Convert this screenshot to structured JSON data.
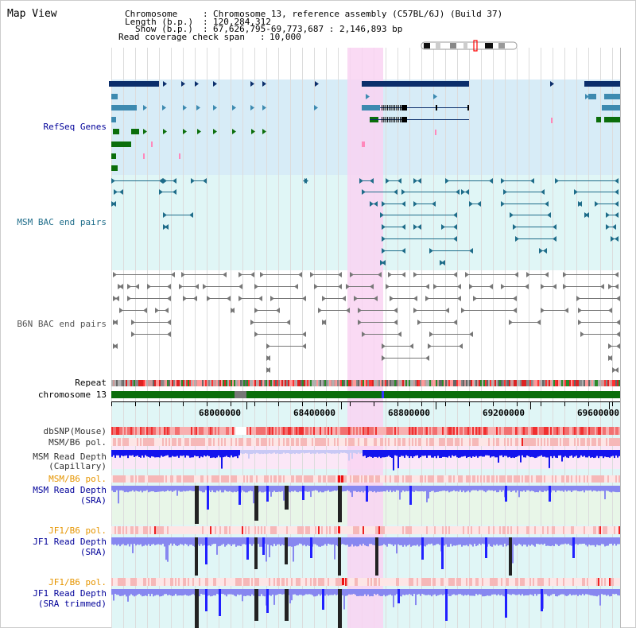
{
  "title": "Map View",
  "info": {
    "chromosome_label": "Chromosome",
    "chromosome_value": "Chromosome 13, reference assembly (C57BL/6J) (Build 37)",
    "length_label": "Length (b.p.)",
    "length_value": "120,284,312",
    "show_label": "Show (b.p.)",
    "show_value": "67,626,795-69,773,687 : 2,146,893 bp",
    "span_label": "Read coverage check span",
    "span_value": "10,000"
  },
  "tracks": {
    "refseq": "RefSeq Genes",
    "msm_bac": "MSM BAC end pairs",
    "b6n_bac": "B6N BAC end pairs",
    "repeat": "Repeat",
    "chromosome": "chromosome 13",
    "dbsnp": "dbSNP(Mouse)",
    "msm_b6_pol_1": "MSM/B6 pol.",
    "msm_read_depth_cap_1": "MSM Read Depth",
    "msm_read_depth_cap_2": "(Capillary)",
    "msm_b6_pol_2": "MSM/B6 pol.",
    "msm_read_depth_sra_1": "MSM Read Depth",
    "msm_read_depth_sra_2": "(SRA)",
    "jf1_b6_pol_1": "JF1/B6 pol.",
    "jf1_read_depth_sra_1": "JF1 Read Depth",
    "jf1_read_depth_sra_2": "(SRA)",
    "jf1_b6_pol_2": "JF1/B6 pol.",
    "jf1_read_depth_trim_1": "JF1 Read Depth",
    "jf1_read_depth_trim_2": "(SRA trimmed)"
  },
  "ruler": {
    "ticks": [
      "68000000",
      "68400000",
      "68800000",
      "69200000",
      "69600000"
    ]
  },
  "colors": {
    "label_blue": "#000099",
    "label_orange": "#e69500",
    "highlight": "#f9d4f2",
    "refseq_bg": "#d7ecf7",
    "bac_bg": "#e0f6f6",
    "gene_dark": "#0b2e6b",
    "gene_mid": "#3d8ab0",
    "gene_green": "#0b6e0b",
    "bac_teal": "#1f6d8a",
    "bac_gray": "#777777",
    "depth_blue": "#1414ee",
    "depth_light": "#8787f0",
    "chrom_green": "#0b6e0b"
  }
}
